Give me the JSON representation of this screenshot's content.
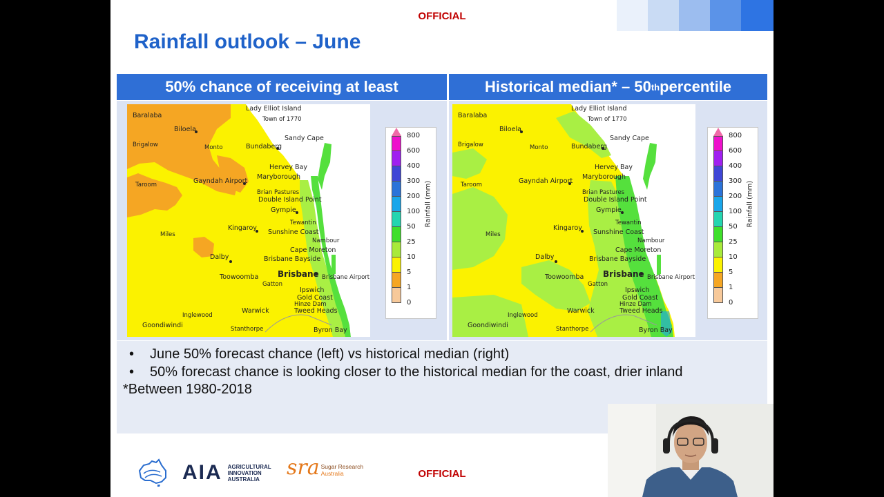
{
  "slide": {
    "classification_top": "OFFICIAL",
    "classification_bottom": "OFFICIAL",
    "title": "Rainfall outlook – June",
    "left_header": "50% chance of receiving at least",
    "right_header_main": "Historical median* – 50",
    "right_header_sup": "th",
    "right_header_tail": " percentile",
    "bullets": [
      "June 50% forecast chance (left) vs historical median (right)",
      "50% forecast chance is looking closer to the historical median for the coast, drier inland"
    ],
    "bullet_glyph": "•",
    "footnote": "*Between 1980-2018"
  },
  "map": {
    "places": {
      "lady_elliot": "Lady Elliot Island",
      "town1770": "Town of 1770",
      "baralaba": "Baralaba",
      "biloela": "Biloela",
      "sandy_cape": "Sandy Cape",
      "brigalow": "Brigalow",
      "monto": "Monto",
      "bundaberg": "Bundaberg",
      "hervey_bay": "Hervey Bay",
      "maryborough": "Maryborough",
      "taroom": "Taroom",
      "gayndah": "Gayndah Airport",
      "brian_pastures": "Brian Pastures",
      "double_island": "Double Island Point",
      "gympie": "Gympie",
      "tewantin": "Tewantin",
      "kingaroy": "Kingaroy",
      "sunshine_coast": "Sunshine Coast",
      "miles": "Miles",
      "nambour": "Nambour",
      "cape_moreton": "Cape Moreton",
      "dalby": "Dalby",
      "brisbane_bayside": "Brisbane Bayside",
      "brisbane": "Brisbane",
      "toowoomba": "Toowoomba",
      "brisbane_airport": "Brisbane Airport",
      "gatton": "Gatton",
      "ipswich": "Ipswich",
      "gold_coast": "Gold Coast",
      "hinze_dam": "Hinze Dam",
      "warwick": "Warwick",
      "tweed_heads": "Tweed Heads",
      "inglewood": "Inglewood",
      "goondiwindi": "Goondiwindi",
      "stanthorpe": "Stanthorpe",
      "byron_bay": "Byron Bay"
    },
    "colors": {
      "brown": "#f5a623",
      "yellow": "#fbf200",
      "lightgreen": "#a9ef44",
      "green": "#55e03d",
      "cyan": "#1aa6e8"
    }
  },
  "legend": {
    "axis_label": "Rainfall (mm)",
    "values": [
      "800",
      "600",
      "400",
      "300",
      "200",
      "100",
      "50",
      "25",
      "10",
      "5",
      "1",
      "0"
    ],
    "colors": [
      "#ee11cc",
      "#a020f0",
      "#3f46d6",
      "#2b73d9",
      "#19a6ea",
      "#24d5b0",
      "#3fdf2b",
      "#a8ea3a",
      "#fbf200",
      "#f5a623",
      "#f7c99a",
      "#ffffff"
    ]
  },
  "footer": {
    "aia_mark": "AIA",
    "aia_line1": "AGRICULTURAL",
    "aia_line2": "INNOVATION",
    "aia_line3": "AUSTRALIA",
    "sra_mark": "sra",
    "sra_line1": "Sugar Research",
    "sra_line2": "Australia"
  },
  "webcam": {
    "shirt_color": "#3d5f8a"
  }
}
